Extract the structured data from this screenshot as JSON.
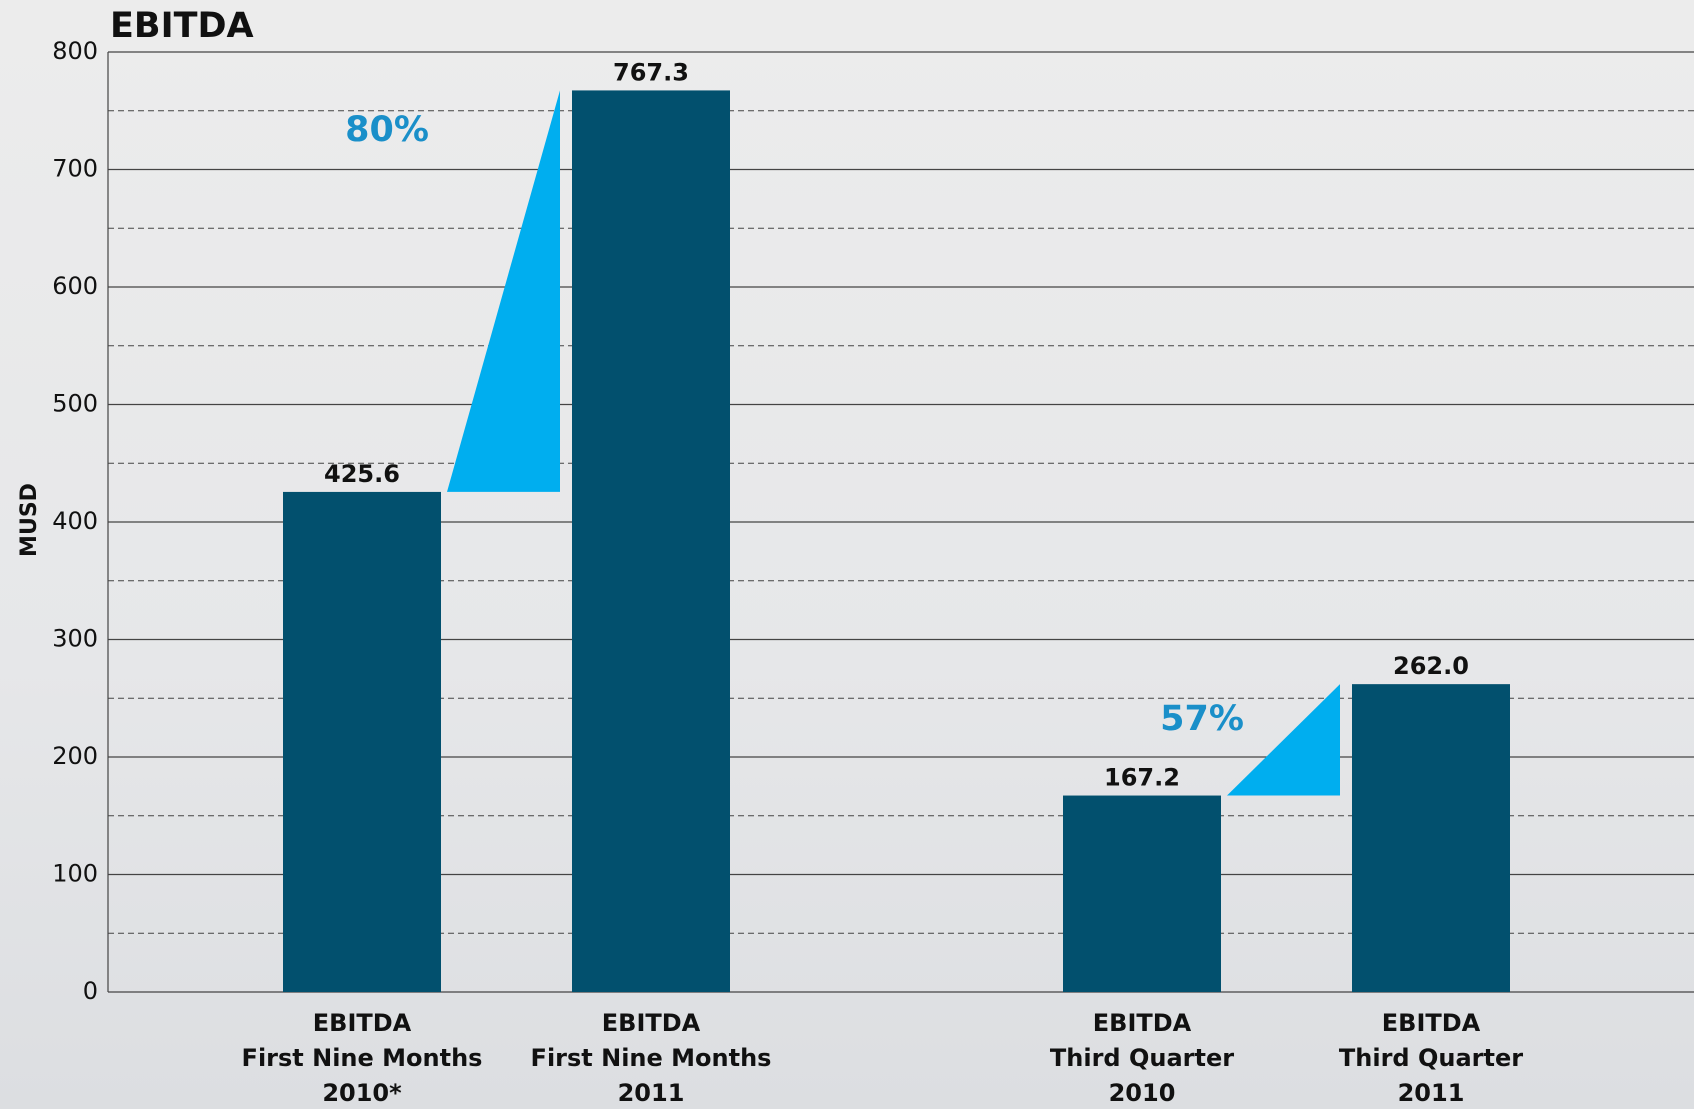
{
  "chart_data": {
    "type": "bar",
    "title": "EBITDA",
    "y_label": "MUSD",
    "categories": [
      "EBITDA\nFirst Nine Months\n2010*",
      "EBITDA\nFirst Nine Months\n2011",
      "EBITDA\nThird Quarter\n2010",
      "EBITDA\nThird Quarter\n2011"
    ],
    "values": [
      425.6,
      767.3,
      167.2,
      262.0
    ],
    "value_labels": [
      "425.6",
      "767.3",
      "167.2",
      "262.0"
    ],
    "color": "#02506e",
    "ylim": [
      0,
      800
    ],
    "yticks": [
      0,
      100,
      200,
      300,
      400,
      500,
      600,
      700,
      800
    ],
    "minor_yticks": [
      50,
      150,
      250,
      350,
      450,
      550,
      650,
      750
    ],
    "grid": true,
    "annotations": [
      "80%",
      "57%"
    ],
    "annotation_color": "#00aeef"
  }
}
